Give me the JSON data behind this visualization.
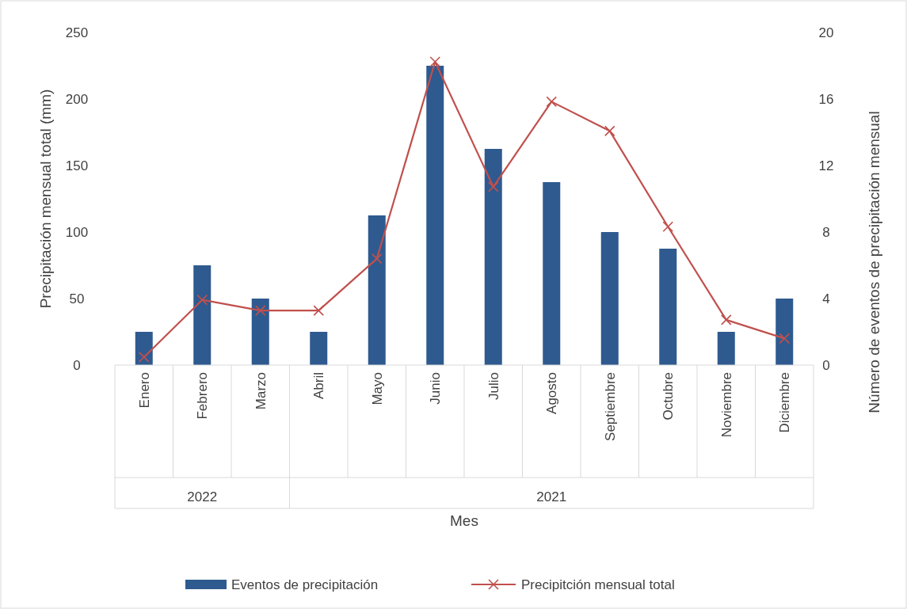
{
  "chart_data": {
    "type": "bar",
    "xlabel": "Mes",
    "ylabel": "Precipitación mensual total (mm)",
    "y2label": "Número de eventos de precipitación mensual",
    "categories": [
      "Enero",
      "Febrero",
      "Marzo",
      "Abril",
      "Mayo",
      "Junio",
      "Julio",
      "Agosto",
      "Septiembre",
      "Octubre",
      "Noviembre",
      "Diciembre"
    ],
    "series": [
      {
        "name": "Eventos de precipitación",
        "axis": "y2",
        "color": "#2e5a8f",
        "values": [
          2,
          6,
          4,
          2,
          9,
          18,
          13,
          11,
          8,
          7,
          2,
          4
        ]
      },
      {
        "name": "Precipitción mensual total",
        "type": "line",
        "color": "#c0504d",
        "marker": "cross",
        "values": [
          6,
          49,
          41,
          41,
          80,
          228,
          134,
          198,
          176,
          104,
          34,
          20
        ]
      }
    ],
    "annotations": [
      "2022",
      "2021"
    ],
    "ylim": [
      0,
      250
    ],
    "yticks": [
      0,
      50,
      100,
      150,
      200,
      250
    ],
    "y2lim": [
      0,
      20
    ],
    "y2ticks": [
      0,
      4,
      8,
      12,
      16,
      20
    ],
    "grid": false,
    "legend": "bottom"
  }
}
